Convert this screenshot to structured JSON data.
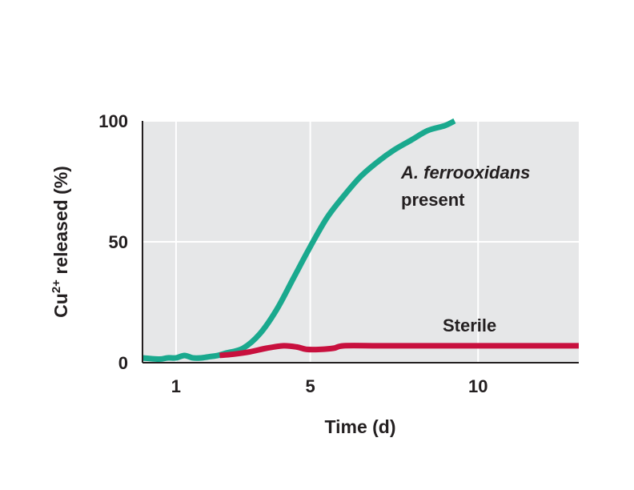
{
  "chart_data": {
    "type": "line",
    "xlabel": "Time (d)",
    "ylabel": {
      "prefix": "Cu",
      "superscript": "2+",
      "suffix": " released (%)"
    },
    "xlim": [
      0,
      13
    ],
    "ylim": [
      0,
      100
    ],
    "x_ticks": [
      {
        "value": 1,
        "label": "1"
      },
      {
        "value": 5,
        "label": "5"
      },
      {
        "value": 10,
        "label": "10"
      }
    ],
    "y_ticks": [
      {
        "value": 0,
        "label": "0"
      },
      {
        "value": 50,
        "label": "50"
      },
      {
        "value": 100,
        "label": "100"
      }
    ],
    "grid": true,
    "background": "#e6e7e8",
    "series": [
      {
        "key": "ferro",
        "color": "#1aa98e",
        "points": [
          [
            0,
            2
          ],
          [
            0.5,
            1.5
          ],
          [
            0.75,
            2
          ],
          [
            1.0,
            2
          ],
          [
            1.25,
            3
          ],
          [
            1.5,
            2
          ],
          [
            1.75,
            2
          ],
          [
            2.0,
            2.5
          ],
          [
            2.25,
            3
          ],
          [
            2.5,
            4
          ],
          [
            3.0,
            6
          ],
          [
            3.5,
            12
          ],
          [
            4.0,
            22
          ],
          [
            4.5,
            35
          ],
          [
            5.0,
            48
          ],
          [
            5.5,
            60
          ],
          [
            6.0,
            69
          ],
          [
            6.5,
            77
          ],
          [
            7.0,
            83
          ],
          [
            7.5,
            88
          ],
          [
            8.0,
            92
          ],
          [
            8.5,
            96
          ],
          [
            9.0,
            98
          ],
          [
            9.3,
            100
          ]
        ]
      },
      {
        "key": "sterile",
        "color": "#c8103e",
        "points": [
          [
            2.3,
            3
          ],
          [
            2.7,
            3.5
          ],
          [
            3.2,
            4.5
          ],
          [
            3.7,
            6
          ],
          [
            4.2,
            7
          ],
          [
            4.6,
            6.5
          ],
          [
            4.9,
            5.5
          ],
          [
            5.3,
            5.5
          ],
          [
            5.7,
            6
          ],
          [
            6.0,
            7
          ],
          [
            7.0,
            7
          ],
          [
            8.0,
            7
          ],
          [
            10.0,
            7
          ],
          [
            12.0,
            7
          ],
          [
            13.0,
            7
          ]
        ]
      }
    ],
    "annotations": [
      {
        "series": "ferro",
        "line1": "A. ferrooxidans",
        "line2": "present"
      },
      {
        "series": "sterile",
        "line1": "Sterile"
      }
    ]
  }
}
